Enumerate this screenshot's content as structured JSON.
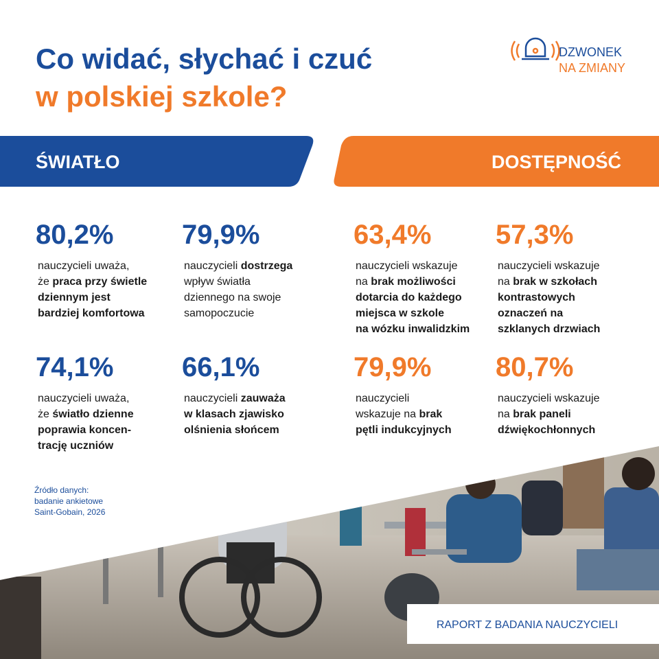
{
  "header": {
    "title_line1": "Co widać, słychać i czuć",
    "title_line2": "w polskiej szkole?",
    "logo_line1": "DZWONEK",
    "logo_line2": "NA ZMIANY"
  },
  "sections": [
    {
      "title": "ŚWIATŁO",
      "color": "#1b4d9b",
      "stats": [
        {
          "value": "80,2%",
          "lines": [
            [
              {
                "t": "nauczycieli uważa,"
              }
            ],
            [
              {
                "t": "że "
              },
              {
                "t": "praca przy świetle",
                "bold": true
              }
            ],
            [
              {
                "t": "dziennym jest",
                "bold": true
              }
            ],
            [
              {
                "t": "bardziej komfortowa",
                "bold": true
              }
            ]
          ]
        },
        {
          "value": "79,9%",
          "lines": [
            [
              {
                "t": "nauczycieli "
              },
              {
                "t": "dostrzega",
                "bold": true
              }
            ],
            [
              {
                "t": "wpływ światła"
              }
            ],
            [
              {
                "t": "dziennego na swoje"
              }
            ],
            [
              {
                "t": "samopoczucie"
              }
            ]
          ]
        },
        {
          "value": "74,1%",
          "lines": [
            [
              {
                "t": "nauczycieli uważa,"
              }
            ],
            [
              {
                "t": "że "
              },
              {
                "t": "światło dzienne",
                "bold": true
              }
            ],
            [
              {
                "t": "poprawia koncen-",
                "bold": true
              }
            ],
            [
              {
                "t": "trację uczniów",
                "bold": true
              }
            ]
          ]
        },
        {
          "value": "66,1%",
          "lines": [
            [
              {
                "t": "nauczycieli "
              },
              {
                "t": "zauważa",
                "bold": true
              }
            ],
            [
              {
                "t": "w klasach zjawisko",
                "bold": true
              }
            ],
            [
              {
                "t": "olśnienia słońcem",
                "bold": true
              }
            ]
          ]
        }
      ]
    },
    {
      "title": "DOSTĘPNOŚĆ",
      "color": "#f07a2a",
      "stats": [
        {
          "value": "63,4%",
          "lines": [
            [
              {
                "t": "nauczycieli wskazuje"
              }
            ],
            [
              {
                "t": "na "
              },
              {
                "t": "brak możliwości",
                "bold": true
              }
            ],
            [
              {
                "t": "dotarcia do każdego",
                "bold": true
              }
            ],
            [
              {
                "t": "miejsca w szkole",
                "bold": true
              }
            ],
            [
              {
                "t": "na wózku inwalidzkim",
                "bold": true
              }
            ]
          ]
        },
        {
          "value": "57,3%",
          "lines": [
            [
              {
                "t": "nauczycieli wskazuje"
              }
            ],
            [
              {
                "t": "na "
              },
              {
                "t": "brak w szkołach",
                "bold": true
              }
            ],
            [
              {
                "t": "kontrastowych",
                "bold": true
              }
            ],
            [
              {
                "t": "oznaczeń na",
                "bold": true
              }
            ],
            [
              {
                "t": "szklanych drzwiach",
                "bold": true
              }
            ]
          ]
        },
        {
          "value": "79,9%",
          "lines": [
            [
              {
                "t": "nauczycieli"
              }
            ],
            [
              {
                "t": "wskazuje na "
              },
              {
                "t": "brak",
                "bold": true
              }
            ],
            [
              {
                "t": "pętli indukcyjnych",
                "bold": true
              }
            ]
          ]
        },
        {
          "value": "80,7%",
          "lines": [
            [
              {
                "t": "nauczycieli wskazuje"
              }
            ],
            [
              {
                "t": "na "
              },
              {
                "t": "brak paneli",
                "bold": true
              }
            ],
            [
              {
                "t": "dźwiękochłonnych",
                "bold": true
              }
            ]
          ]
        }
      ]
    }
  ],
  "source": [
    "Źródło danych:",
    "badanie ankietowe",
    "Saint-Gobain, 2026"
  ],
  "footer_badge": "RAPORT Z BADANIA NAUCZYCIELI"
}
